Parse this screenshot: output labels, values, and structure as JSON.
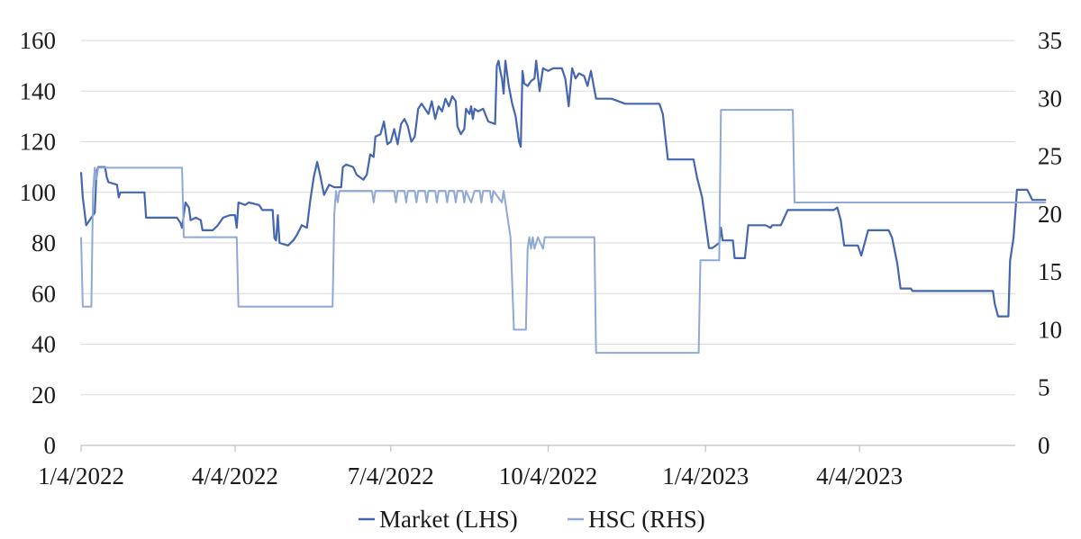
{
  "chart_data": {
    "type": "line",
    "title": "",
    "xlabel": "",
    "ylabel_left": "",
    "ylabel_right": "",
    "x_range": [
      "2022-01-04",
      "2023-07-04"
    ],
    "x_ticks": [
      {
        "date": "2022-01-04",
        "label": "1/4/2022"
      },
      {
        "date": "2022-04-04",
        "label": "4/4/2022"
      },
      {
        "date": "2022-07-04",
        "label": "7/4/2022"
      },
      {
        "date": "2022-10-04",
        "label": "10/4/2022"
      },
      {
        "date": "2023-01-04",
        "label": "1/4/2023"
      },
      {
        "date": "2023-04-04",
        "label": "4/4/2023"
      }
    ],
    "ylim_left": [
      0,
      160
    ],
    "yticks_left": [
      0,
      20,
      40,
      60,
      80,
      100,
      120,
      140,
      160
    ],
    "ylim_right": [
      0,
      35
    ],
    "yticks_right": [
      0,
      5,
      10,
      15,
      20,
      25,
      30,
      35
    ],
    "grid": "horizontal",
    "legend_position": "bottom",
    "series": [
      {
        "name": "Market (LHS)",
        "axis": "left",
        "color": "#4466b0",
        "points": [
          [
            "2022-01-04",
            108
          ],
          [
            "2022-01-05",
            98
          ],
          [
            "2022-01-07",
            87
          ],
          [
            "2022-01-10",
            90
          ],
          [
            "2022-01-12",
            92
          ],
          [
            "2022-01-13",
            108
          ],
          [
            "2022-01-14",
            110
          ],
          [
            "2022-01-18",
            110
          ],
          [
            "2022-01-19",
            106
          ],
          [
            "2022-01-20",
            104
          ],
          [
            "2022-01-25",
            103
          ],
          [
            "2022-01-26",
            98
          ],
          [
            "2022-01-27",
            100
          ],
          [
            "2022-02-10",
            100
          ],
          [
            "2022-02-11",
            90
          ],
          [
            "2022-03-01",
            90
          ],
          [
            "2022-03-03",
            88
          ],
          [
            "2022-03-04",
            86
          ],
          [
            "2022-03-06",
            96
          ],
          [
            "2022-03-08",
            94
          ],
          [
            "2022-03-09",
            89
          ],
          [
            "2022-03-12",
            90
          ],
          [
            "2022-03-15",
            89
          ],
          [
            "2022-03-16",
            85
          ],
          [
            "2022-03-22",
            85
          ],
          [
            "2022-03-25",
            87
          ],
          [
            "2022-03-28",
            90
          ],
          [
            "2022-04-01",
            91
          ],
          [
            "2022-04-04",
            91
          ],
          [
            "2022-04-05",
            86
          ],
          [
            "2022-04-06",
            96
          ],
          [
            "2022-04-10",
            95
          ],
          [
            "2022-04-12",
            96
          ],
          [
            "2022-04-18",
            95
          ],
          [
            "2022-04-20",
            93
          ],
          [
            "2022-04-26",
            93
          ],
          [
            "2022-04-27",
            82
          ],
          [
            "2022-04-28",
            81
          ],
          [
            "2022-04-29",
            91
          ],
          [
            "2022-04-30",
            80
          ],
          [
            "2022-05-05",
            79
          ],
          [
            "2022-05-08",
            81
          ],
          [
            "2022-05-10",
            83
          ],
          [
            "2022-05-13",
            87
          ],
          [
            "2022-05-16",
            86
          ],
          [
            "2022-05-18",
            97
          ],
          [
            "2022-05-20",
            106
          ],
          [
            "2022-05-22",
            112
          ],
          [
            "2022-05-24",
            106
          ],
          [
            "2022-05-26",
            99
          ],
          [
            "2022-05-29",
            103
          ],
          [
            "2022-06-01",
            102
          ],
          [
            "2022-06-05",
            102
          ],
          [
            "2022-06-06",
            110
          ],
          [
            "2022-06-08",
            111
          ],
          [
            "2022-06-12",
            110
          ],
          [
            "2022-06-14",
            107
          ],
          [
            "2022-06-18",
            105
          ],
          [
            "2022-06-20",
            107
          ],
          [
            "2022-06-22",
            115
          ],
          [
            "2022-06-24",
            114
          ],
          [
            "2022-06-25",
            122
          ],
          [
            "2022-06-28",
            123
          ],
          [
            "2022-06-30",
            128
          ],
          [
            "2022-07-02",
            119
          ],
          [
            "2022-07-04",
            120
          ],
          [
            "2022-07-06",
            125
          ],
          [
            "2022-07-08",
            119
          ],
          [
            "2022-07-10",
            127
          ],
          [
            "2022-07-12",
            129
          ],
          [
            "2022-07-14",
            126
          ],
          [
            "2022-07-16",
            120
          ],
          [
            "2022-07-18",
            122
          ],
          [
            "2022-07-20",
            133
          ],
          [
            "2022-07-22",
            135
          ],
          [
            "2022-07-24",
            133
          ],
          [
            "2022-07-26",
            131
          ],
          [
            "2022-07-28",
            136
          ],
          [
            "2022-07-30",
            129
          ],
          [
            "2022-08-01",
            134
          ],
          [
            "2022-08-03",
            132
          ],
          [
            "2022-08-05",
            137
          ],
          [
            "2022-08-07",
            134
          ],
          [
            "2022-08-09",
            138
          ],
          [
            "2022-08-11",
            136
          ],
          [
            "2022-08-12",
            126
          ],
          [
            "2022-08-14",
            123
          ],
          [
            "2022-08-16",
            125
          ],
          [
            "2022-08-17",
            133
          ],
          [
            "2022-08-19",
            131
          ],
          [
            "2022-08-20",
            134
          ],
          [
            "2022-08-21",
            129
          ],
          [
            "2022-08-22",
            133
          ],
          [
            "2022-08-24",
            132
          ],
          [
            "2022-08-27",
            133
          ],
          [
            "2022-08-30",
            128
          ],
          [
            "2022-09-03",
            127
          ],
          [
            "2022-09-04",
            150
          ],
          [
            "2022-09-05",
            152
          ],
          [
            "2022-09-06",
            148
          ],
          [
            "2022-09-07",
            145
          ],
          [
            "2022-09-08",
            139
          ],
          [
            "2022-09-09",
            152
          ],
          [
            "2022-09-11",
            142
          ],
          [
            "2022-09-13",
            135
          ],
          [
            "2022-09-15",
            130
          ],
          [
            "2022-09-17",
            120
          ],
          [
            "2022-09-18",
            118
          ],
          [
            "2022-09-19",
            148
          ],
          [
            "2022-09-20",
            143
          ],
          [
            "2022-09-22",
            142
          ],
          [
            "2022-09-24",
            144
          ],
          [
            "2022-09-26",
            145
          ],
          [
            "2022-09-27",
            152
          ],
          [
            "2022-09-29",
            140
          ],
          [
            "2022-10-01",
            149
          ],
          [
            "2022-10-04",
            148
          ],
          [
            "2022-10-07",
            149
          ],
          [
            "2022-10-12",
            149
          ],
          [
            "2022-10-14",
            145
          ],
          [
            "2022-10-16",
            134
          ],
          [
            "2022-10-18",
            149
          ],
          [
            "2022-10-20",
            145
          ],
          [
            "2022-10-22",
            147
          ],
          [
            "2022-10-25",
            146
          ],
          [
            "2022-10-27",
            142
          ],
          [
            "2022-10-29",
            148
          ],
          [
            "2022-11-01",
            137
          ],
          [
            "2022-11-10",
            137
          ],
          [
            "2022-11-18",
            135
          ],
          [
            "2022-12-08",
            135
          ],
          [
            "2022-12-10",
            131
          ],
          [
            "2022-12-13",
            113
          ],
          [
            "2022-12-28",
            113
          ],
          [
            "2022-12-30",
            106
          ],
          [
            "2023-01-02",
            98
          ],
          [
            "2023-01-06",
            78
          ],
          [
            "2023-01-08",
            78
          ],
          [
            "2023-01-12",
            80
          ],
          [
            "2023-01-13",
            86
          ],
          [
            "2023-01-14",
            81
          ],
          [
            "2023-01-20",
            81
          ],
          [
            "2023-01-21",
            74
          ],
          [
            "2023-01-27",
            74
          ],
          [
            "2023-01-29",
            87
          ],
          [
            "2023-02-08",
            87
          ],
          [
            "2023-02-11",
            86
          ],
          [
            "2023-02-12",
            87
          ],
          [
            "2023-02-17",
            87
          ],
          [
            "2023-02-21",
            93
          ],
          [
            "2023-03-20",
            93
          ],
          [
            "2023-03-22",
            94
          ],
          [
            "2023-03-24",
            89
          ],
          [
            "2023-03-26",
            79
          ],
          [
            "2023-04-03",
            79
          ],
          [
            "2023-04-05",
            75
          ],
          [
            "2023-04-09",
            85
          ],
          [
            "2023-04-21",
            85
          ],
          [
            "2023-04-23",
            82
          ],
          [
            "2023-04-26",
            72
          ],
          [
            "2023-04-28",
            62
          ],
          [
            "2023-05-04",
            62
          ],
          [
            "2023-05-05",
            61
          ],
          [
            "2023-06-21",
            61
          ],
          [
            "2023-06-22",
            56
          ],
          [
            "2023-06-24",
            51
          ],
          [
            "2023-06-30",
            51
          ],
          [
            "2023-07-01",
            73
          ],
          [
            "2023-07-03",
            82
          ],
          [
            "2023-07-05",
            101
          ],
          [
            "2023-07-11",
            101
          ],
          [
            "2023-07-14",
            97
          ],
          [
            "2023-07-22",
            97
          ]
        ]
      },
      {
        "name": "HSC (RHS)",
        "axis": "right",
        "color": "#8fa8d6",
        "points": [
          [
            "2022-01-04",
            18
          ],
          [
            "2022-01-05",
            12
          ],
          [
            "2022-01-10",
            12
          ],
          [
            "2022-01-11",
            22
          ],
          [
            "2022-01-12",
            24
          ],
          [
            "2022-01-13",
            23
          ],
          [
            "2022-01-14",
            24
          ],
          [
            "2022-03-04",
            24
          ],
          [
            "2022-03-05",
            18
          ],
          [
            "2022-04-05",
            18
          ],
          [
            "2022-04-06",
            12
          ],
          [
            "2022-05-31",
            12
          ],
          [
            "2022-06-01",
            20
          ],
          [
            "2022-06-02",
            22
          ],
          [
            "2022-06-03",
            21
          ],
          [
            "2022-06-04",
            22
          ],
          [
            "2022-06-23",
            22
          ],
          [
            "2022-06-24",
            21
          ],
          [
            "2022-06-25",
            22
          ],
          [
            "2022-07-06",
            22
          ],
          [
            "2022-07-07",
            21
          ],
          [
            "2022-07-08",
            22
          ],
          [
            "2022-07-12",
            22
          ],
          [
            "2022-07-13",
            21
          ],
          [
            "2022-07-14",
            22
          ],
          [
            "2022-07-18",
            22
          ],
          [
            "2022-07-19",
            21
          ],
          [
            "2022-07-20",
            22
          ],
          [
            "2022-07-24",
            22
          ],
          [
            "2022-07-25",
            21
          ],
          [
            "2022-07-26",
            22
          ],
          [
            "2022-07-30",
            22
          ],
          [
            "2022-07-31",
            21
          ],
          [
            "2022-08-01",
            22
          ],
          [
            "2022-08-05",
            22
          ],
          [
            "2022-08-06",
            21
          ],
          [
            "2022-08-07",
            22
          ],
          [
            "2022-08-10",
            22
          ],
          [
            "2022-08-11",
            21
          ],
          [
            "2022-08-12",
            22
          ],
          [
            "2022-08-15",
            22
          ],
          [
            "2022-08-16",
            21
          ],
          [
            "2022-08-17",
            22
          ],
          [
            "2022-08-20",
            21
          ],
          [
            "2022-08-22",
            22
          ],
          [
            "2022-08-25",
            22
          ],
          [
            "2022-08-26",
            21
          ],
          [
            "2022-08-27",
            22
          ],
          [
            "2022-08-31",
            22
          ],
          [
            "2022-09-01",
            21
          ],
          [
            "2022-09-02",
            22
          ],
          [
            "2022-09-07",
            21
          ],
          [
            "2022-09-08",
            22
          ],
          [
            "2022-09-10",
            20
          ],
          [
            "2022-09-12",
            18
          ],
          [
            "2022-09-14",
            10
          ],
          [
            "2022-09-21",
            10
          ],
          [
            "2022-09-22",
            17
          ],
          [
            "2022-09-23",
            18
          ],
          [
            "2022-09-24",
            17
          ],
          [
            "2022-09-25",
            18
          ],
          [
            "2022-09-26",
            17
          ],
          [
            "2022-09-28",
            18
          ],
          [
            "2022-10-01",
            17
          ],
          [
            "2022-10-02",
            18
          ],
          [
            "2022-10-31",
            18
          ],
          [
            "2022-11-01",
            8
          ],
          [
            "2022-12-31",
            8
          ],
          [
            "2023-01-01",
            16
          ],
          [
            "2023-01-12",
            16
          ],
          [
            "2023-01-13",
            29
          ],
          [
            "2023-02-24",
            29
          ],
          [
            "2023-02-25",
            21
          ],
          [
            "2023-07-22",
            21
          ]
        ]
      }
    ]
  }
}
